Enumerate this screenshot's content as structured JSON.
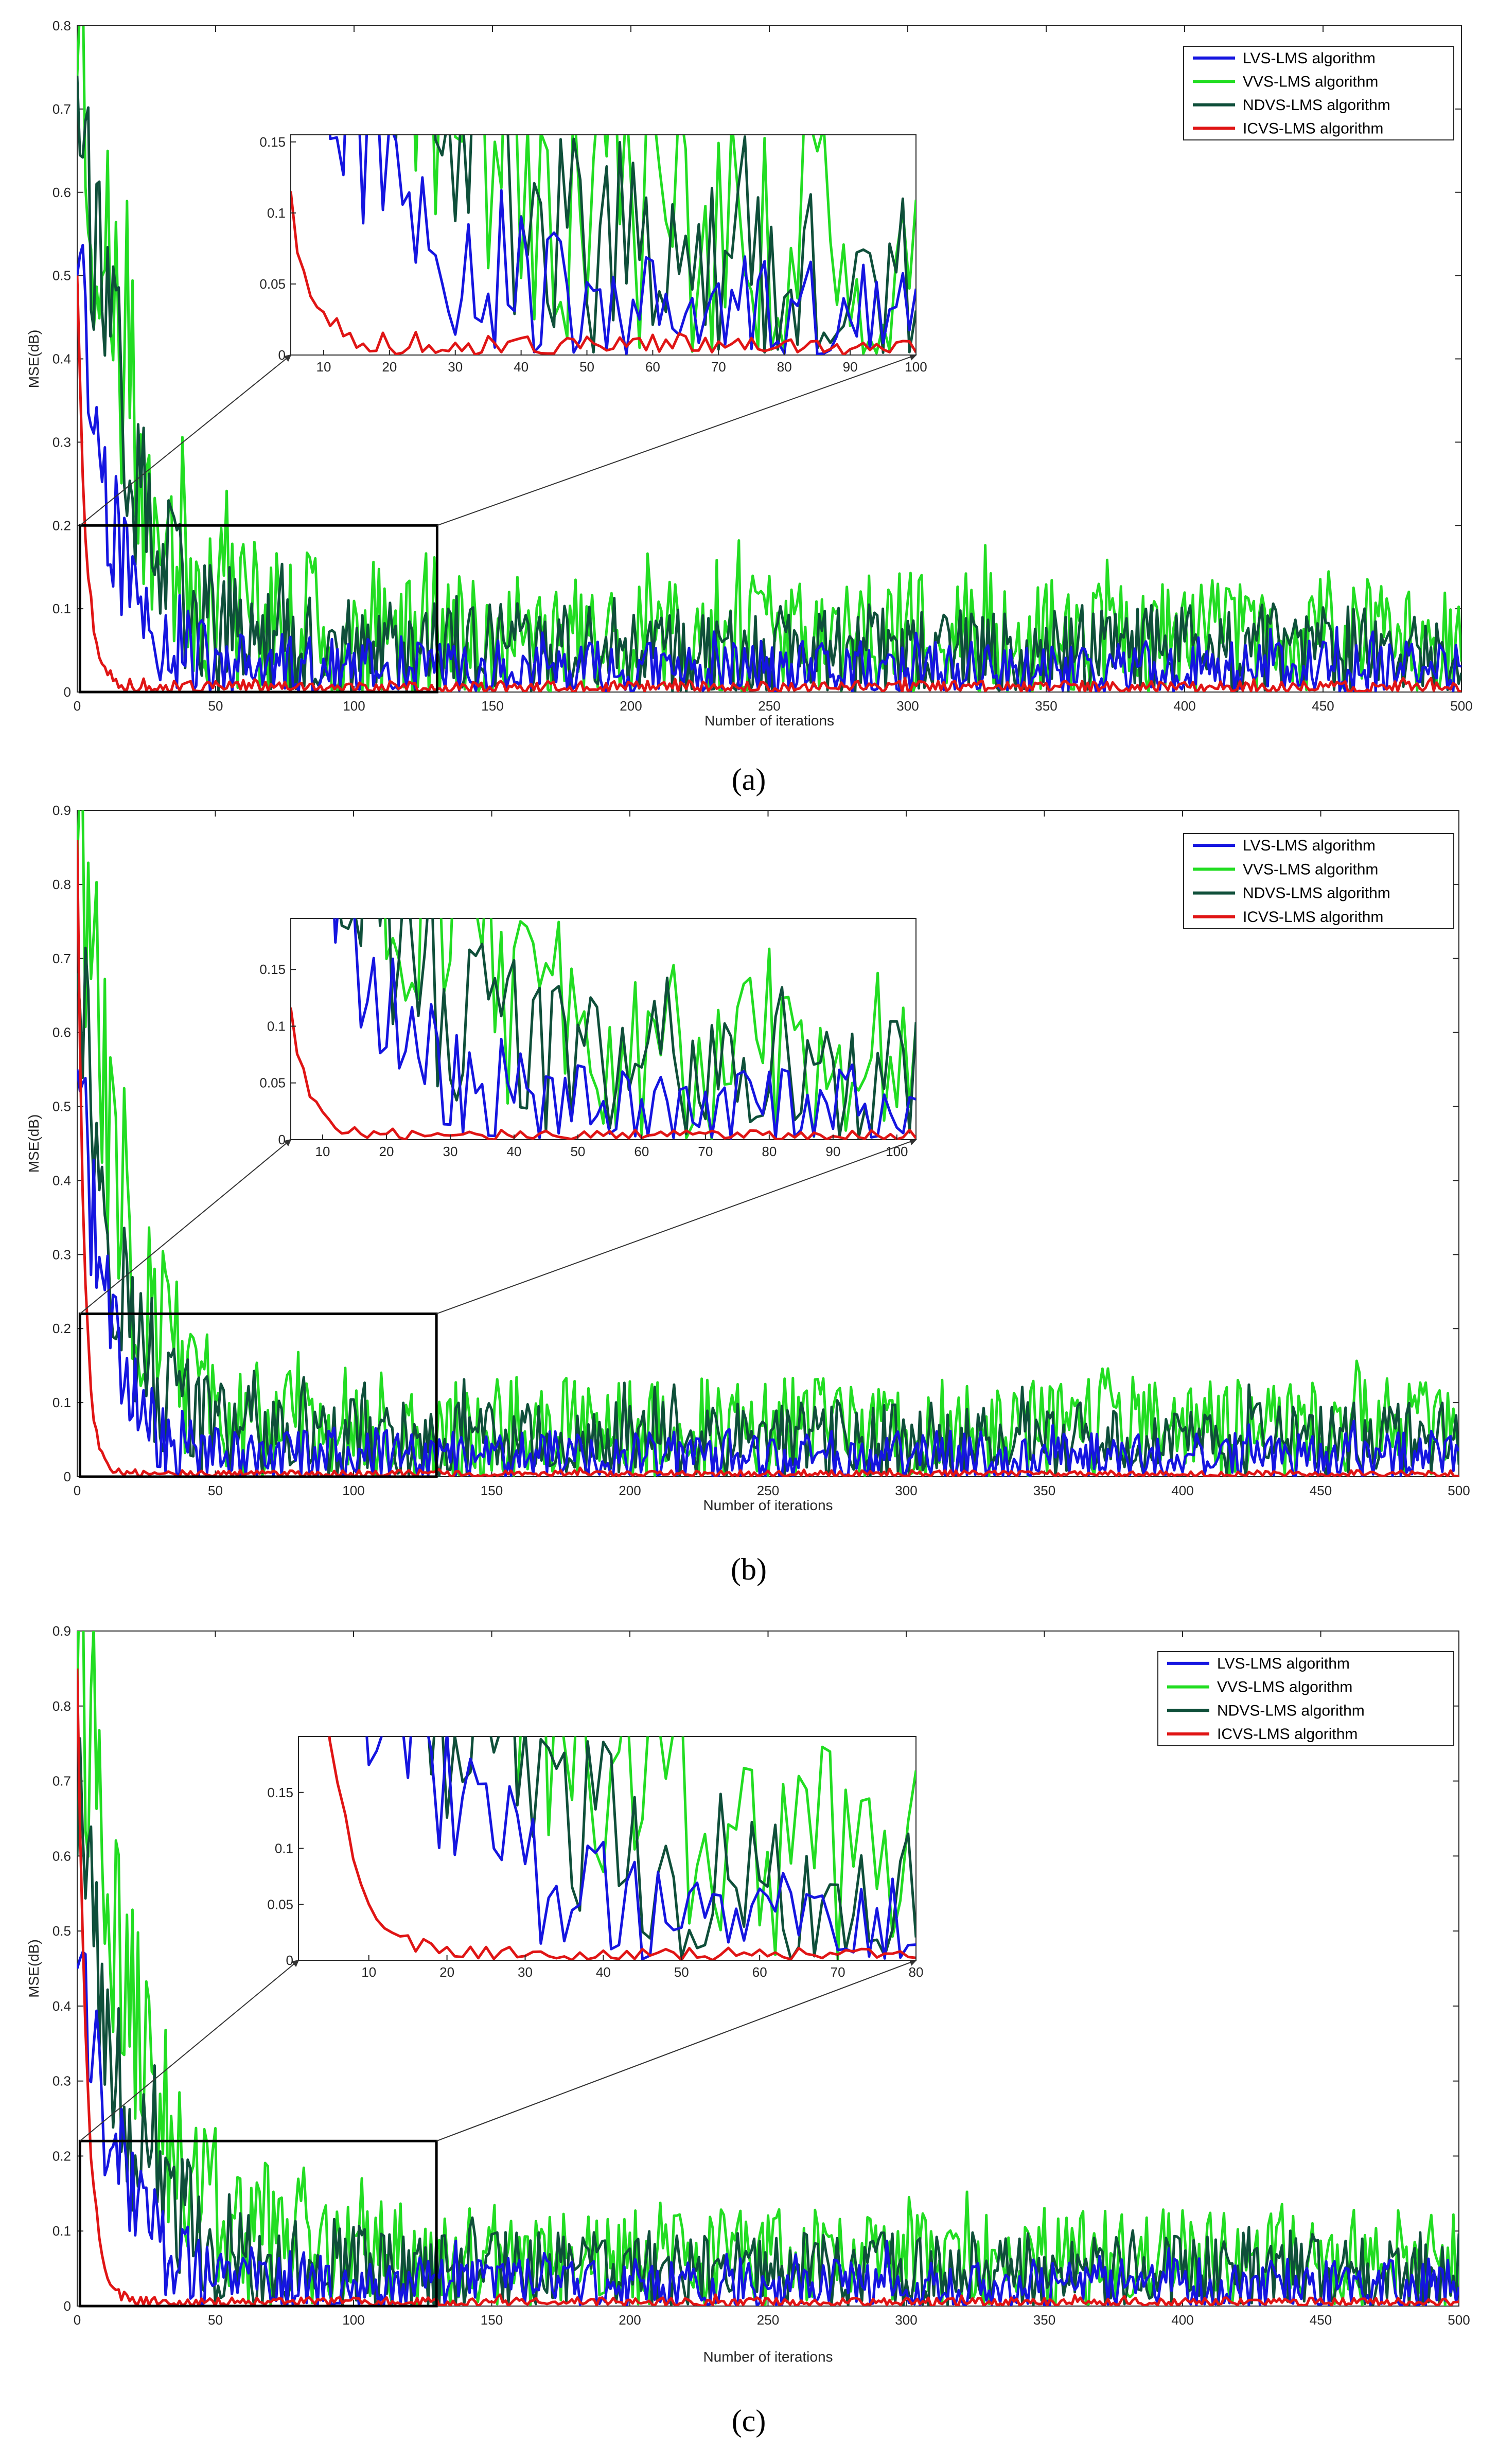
{
  "figure": {
    "panel_labels": [
      "(a)",
      "(b)",
      "(c)"
    ]
  },
  "chart_data": [
    {
      "panel": "a",
      "type": "line",
      "xlabel": "Number of iterations",
      "ylabel": "MSE(dB)",
      "xlim": [
        0,
        500
      ],
      "ylim": [
        0,
        0.8
      ],
      "xticks": [
        0,
        50,
        100,
        150,
        200,
        250,
        300,
        350,
        400,
        450,
        500
      ],
      "yticks": [
        0,
        0.1,
        0.2,
        0.3,
        0.4,
        0.5,
        0.6,
        0.7,
        0.8
      ],
      "legend": {
        "position": "top-right",
        "entries": [
          "LVS-LMS algorithm",
          "VVS-LMS algorithm",
          "NDVS-LMS algorithm",
          "ICVS-LMS algorithm"
        ]
      },
      "series": [
        {
          "name": "LVS-LMS algorithm",
          "color": "#1515e0",
          "start": 0.5,
          "tau": 12,
          "level": 0.02,
          "noise": 0.045,
          "seed": 11
        },
        {
          "name": "VVS-LMS algorithm",
          "color": "#22dd22",
          "start": 0.74,
          "tau": 18,
          "level": 0.055,
          "noise": 0.095,
          "seed": 23
        },
        {
          "name": "NDVS-LMS algorithm",
          "color": "#0f4f3a",
          "start": 0.74,
          "tau": 15,
          "level": 0.04,
          "noise": 0.07,
          "seed": 37
        },
        {
          "name": "ICVS-LMS algorithm",
          "color": "#e01515",
          "start": 0.5,
          "tau": 3,
          "level": 0.004,
          "noise": 0.01,
          "seed": 51
        }
      ],
      "zoom_box": {
        "xlim": [
          1,
          130
        ],
        "ylim": [
          0,
          0.2
        ]
      },
      "inset": {
        "xlim": [
          5,
          100
        ],
        "ylim": [
          0,
          0.155
        ],
        "xticks": [
          10,
          20,
          30,
          40,
          50,
          60,
          70,
          80,
          90,
          100
        ],
        "yticks": [
          0,
          0.05,
          0.1,
          0.15
        ]
      }
    },
    {
      "panel": "b",
      "type": "line",
      "xlabel": "Number of iterations",
      "ylabel": "MSE(dB)",
      "xlim": [
        0,
        500
      ],
      "ylim": [
        0,
        0.9
      ],
      "xticks": [
        0,
        50,
        100,
        150,
        200,
        250,
        300,
        350,
        400,
        450,
        500
      ],
      "yticks": [
        0,
        0.1,
        0.2,
        0.3,
        0.4,
        0.5,
        0.6,
        0.7,
        0.8,
        0.9
      ],
      "legend": {
        "position": "top-right",
        "entries": [
          "LVS-LMS algorithm",
          "VVS-LMS algorithm",
          "NDVS-LMS algorithm",
          "ICVS-LMS algorithm"
        ]
      },
      "series": [
        {
          "name": "LVS-LMS algorithm",
          "color": "#1515e0",
          "start": 0.55,
          "tau": 10,
          "level": 0.02,
          "noise": 0.045,
          "seed": 71
        },
        {
          "name": "VVS-LMS algorithm",
          "color": "#22dd22",
          "start": 0.83,
          "tau": 16,
          "level": 0.05,
          "noise": 0.09,
          "seed": 83
        },
        {
          "name": "NDVS-LMS algorithm",
          "color": "#0f4f3a",
          "start": 0.68,
          "tau": 13,
          "level": 0.04,
          "noise": 0.065,
          "seed": 97
        },
        {
          "name": "ICVS-LMS algorithm",
          "color": "#e01515",
          "start": 0.86,
          "tau": 2.5,
          "level": 0.003,
          "noise": 0.006,
          "seed": 109
        }
      ],
      "zoom_box": {
        "xlim": [
          1,
          130
        ],
        "ylim": [
          0,
          0.22
        ]
      },
      "inset": {
        "xlim": [
          5,
          103
        ],
        "ylim": [
          0,
          0.195
        ],
        "xticks": [
          10,
          20,
          30,
          40,
          50,
          60,
          70,
          80,
          90,
          100
        ],
        "yticks": [
          0,
          0.05,
          0.1,
          0.15
        ]
      }
    },
    {
      "panel": "c",
      "type": "line",
      "xlabel": "Number of iterations",
      "ylabel": "MSE(dB)",
      "xlim": [
        0,
        500
      ],
      "ylim": [
        0,
        0.9
      ],
      "xticks": [
        0,
        50,
        100,
        150,
        200,
        250,
        300,
        350,
        400,
        450,
        500
      ],
      "yticks": [
        0,
        0.1,
        0.2,
        0.3,
        0.4,
        0.5,
        0.6,
        0.7,
        0.8,
        0.9
      ],
      "legend": {
        "position": "top-right",
        "entries": [
          "LVS-LMS algorithm",
          "VVS-LMS algorithm",
          "NDVS-LMS algorithm",
          "ICVS-LMS algorithm"
        ]
      },
      "series": [
        {
          "name": "LVS-LMS algorithm",
          "color": "#1515e0",
          "start": 0.45,
          "tau": 14,
          "level": 0.022,
          "noise": 0.045,
          "seed": 131
        },
        {
          "name": "VVS-LMS algorithm",
          "color": "#22dd22",
          "start": 0.81,
          "tau": 20,
          "level": 0.05,
          "noise": 0.085,
          "seed": 149
        },
        {
          "name": "NDVS-LMS algorithm",
          "color": "#0f4f3a",
          "start": 0.6,
          "tau": 17,
          "level": 0.038,
          "noise": 0.065,
          "seed": 163
        },
        {
          "name": "ICVS-LMS algorithm",
          "color": "#e01515",
          "start": 0.85,
          "tau": 3.5,
          "level": 0.004,
          "noise": 0.008,
          "seed": 179
        }
      ],
      "zoom_box": {
        "xlim": [
          1,
          130
        ],
        "ylim": [
          0,
          0.22
        ]
      },
      "inset": {
        "xlim": [
          1,
          80
        ],
        "ylim": [
          0,
          0.2
        ],
        "xticks": [
          10,
          20,
          30,
          40,
          50,
          60,
          70,
          80
        ],
        "yticks": [
          0,
          0.05,
          0.1,
          0.15
        ]
      }
    }
  ]
}
